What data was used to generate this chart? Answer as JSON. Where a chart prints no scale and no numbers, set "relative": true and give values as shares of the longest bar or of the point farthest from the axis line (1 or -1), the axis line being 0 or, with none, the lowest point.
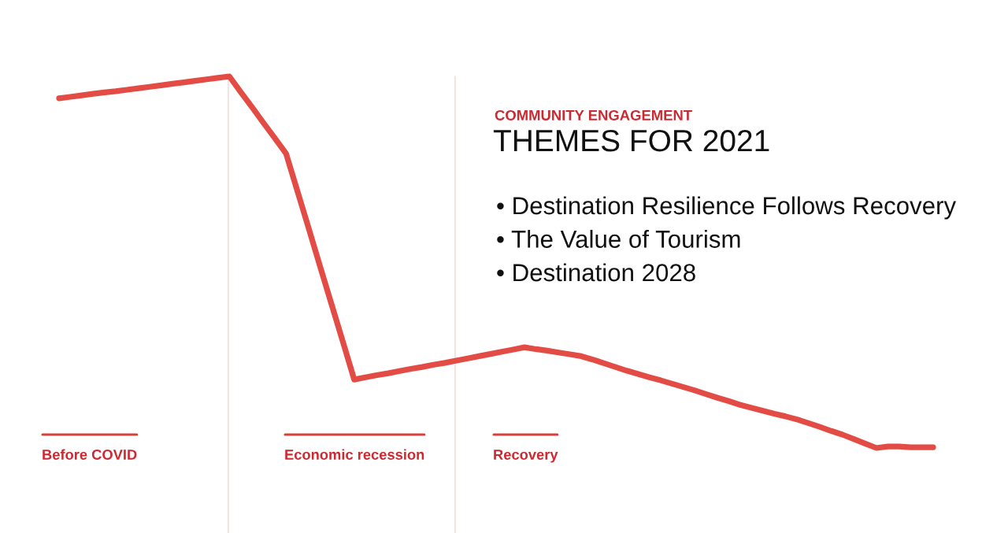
{
  "chart_data": {
    "type": "line",
    "relative": true,
    "title": "THEMES FOR 2021",
    "subtitle": "COMMUNITY ENGAGEMENT",
    "categories": [
      null,
      null,
      null,
      null,
      null,
      null,
      null,
      null,
      null,
      null,
      null,
      null,
      null,
      null,
      null,
      null,
      null,
      null,
      null,
      null,
      null,
      null,
      null,
      null,
      null,
      null,
      null,
      null,
      null,
      null,
      null,
      null,
      null,
      null,
      null,
      null,
      null,
      null,
      null,
      null,
      null,
      null,
      null,
      null,
      null,
      null,
      null,
      null,
      null,
      null,
      null,
      null,
      null,
      null,
      null,
      null,
      null,
      null,
      null,
      null,
      null,
      null,
      null,
      null,
      null,
      null,
      null,
      null,
      null,
      null,
      null,
      null,
      null,
      null,
      null,
      null,
      null,
      null
    ],
    "series": [
      {
        "color": "#e34b45",
        "values": [
          0.941,
          0.945,
          0.949,
          0.953,
          0.957,
          0.96,
          0.964,
          0.968,
          0.972,
          0.976,
          0.98,
          0.984,
          0.988,
          0.992,
          0.996,
          1,
          0.958,
          0.917,
          0.875,
          0.834,
          0.792,
          0.691,
          0.59,
          0.488,
          0.387,
          0.286,
          0.184,
          0.19,
          0.196,
          0.201,
          0.207,
          0.213,
          0.218,
          0.224,
          0.229,
          0.235,
          0.241,
          0.247,
          0.253,
          0.259,
          0.265,
          0.271,
          0.266,
          0.262,
          0.257,
          0.252,
          0.247,
          0.238,
          0.228,
          0.218,
          0.208,
          0.199,
          0.19,
          0.182,
          0.173,
          0.164,
          0.155,
          0.145,
          0.135,
          0.126,
          0.116,
          0.108,
          0.1,
          0.092,
          0.085,
          0.077,
          0.067,
          0.057,
          0.046,
          0.036,
          0.024,
          0.012,
          0,
          0.004,
          0.004,
          0.002,
          0.002,
          0.002
        ]
      }
    ],
    "annotations": [
      "Before COVID",
      "Economic recession",
      "Recovery",
      "• Destination Resilience Follows Recovery",
      "• The Value of Tourism",
      "• Destination 2028"
    ],
    "grid": false,
    "line_style": "solid"
  }
}
